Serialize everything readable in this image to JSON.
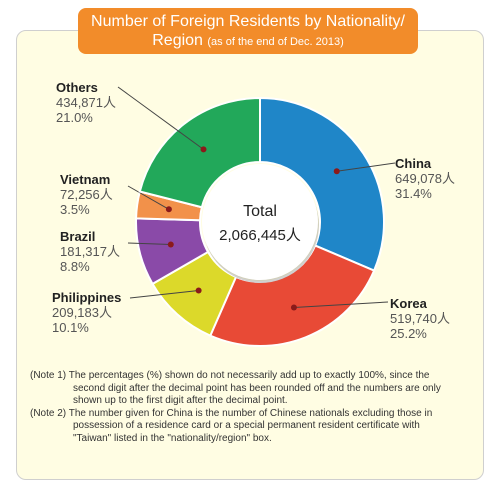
{
  "title": {
    "line1": "Number of Foreign Residents by Nationality/",
    "line2": "Region",
    "subtitle": "(as of the end of Dec. 2013)"
  },
  "center_label": {
    "heading": "Total",
    "value": "2,066,445人"
  },
  "chart_data": {
    "type": "pie",
    "variant": "donut",
    "title": "Number of Foreign Residents by Nationality/Region (as of the end of Dec. 2013)",
    "total": 2066445,
    "unit": "人",
    "slices": [
      {
        "name": "China",
        "value": 649078,
        "value_label": "649,078人",
        "percent": 31.4,
        "percent_label": "31.4%",
        "color": "#1f86c8"
      },
      {
        "name": "Korea",
        "value": 519740,
        "value_label": "519,740人",
        "percent": 25.2,
        "percent_label": "25.2%",
        "color": "#e84a36"
      },
      {
        "name": "Philippines",
        "value": 209183,
        "value_label": "209,183人",
        "percent": 10.1,
        "percent_label": "10.1%",
        "color": "#dcd92a"
      },
      {
        "name": "Brazil",
        "value": 181317,
        "value_label": "181,317人",
        "percent": 8.8,
        "percent_label": "8.8%",
        "color": "#8a4aa8"
      },
      {
        "name": "Vietnam",
        "value": 72256,
        "value_label": "72,256人",
        "percent": 3.5,
        "percent_label": "3.5%",
        "color": "#f2914a"
      },
      {
        "name": "Others",
        "value": 434871,
        "value_label": "434,871人",
        "percent": 21.0,
        "percent_label": "21.0%",
        "color": "#22a85a"
      }
    ],
    "legend": "none"
  },
  "notes": [
    "(Note 1) The percentages (%) shown do not necessarily add up to exactly 100%, since the second digit after the decimal point has been rounded off and the numbers are only shown up to the first digit after the decimal point.",
    "(Note 2) The number given for China is the number of Chinese nationals excluding those in possession of a residence card or a special permanent resident certificate with \"Taiwan\" listed in the \"nationality/region\" box."
  ]
}
